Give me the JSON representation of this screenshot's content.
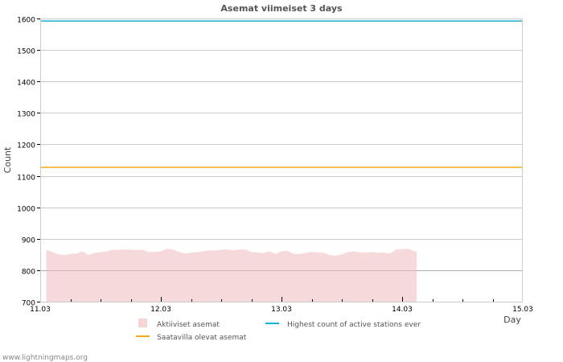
{
  "chart_data": {
    "type": "area",
    "title": "Asemat viimeiset 3 days",
    "xlabel": "Day",
    "ylabel": "Count",
    "ylim": [
      700,
      1600
    ],
    "xlim": [
      0,
      4
    ],
    "yticks": [
      700,
      800,
      900,
      1000,
      1100,
      1200,
      1300,
      1400,
      1500,
      1600
    ],
    "xtick_labels": [
      "11.03",
      "12.03",
      "13.03",
      "14.03",
      "15.03"
    ],
    "grid": true,
    "legend_placement": "bottom",
    "series": [
      {
        "name": "Aktiiviset asemat",
        "type": "area",
        "color": "#f5d5d6",
        "x": [
          0.05,
          0.1,
          0.15,
          0.2,
          0.25,
          0.3,
          0.35,
          0.4,
          0.45,
          0.5,
          0.55,
          0.6,
          0.65,
          0.7,
          0.75,
          0.8,
          0.85,
          0.9,
          0.95,
          1.0,
          1.05,
          1.1,
          1.15,
          1.2,
          1.25,
          1.3,
          1.35,
          1.4,
          1.45,
          1.5,
          1.55,
          1.6,
          1.65,
          1.7,
          1.75,
          1.8,
          1.85,
          1.9,
          1.95,
          2.0,
          2.05,
          2.1,
          2.15,
          2.2,
          2.25,
          2.3,
          2.35,
          2.4,
          2.45,
          2.5,
          2.55,
          2.6,
          2.65,
          2.7,
          2.75,
          2.8,
          2.85,
          2.9,
          2.95,
          3.0,
          3.05,
          3.1,
          3.12
        ],
        "values": [
          865,
          858,
          850,
          848,
          852,
          853,
          860,
          848,
          855,
          857,
          860,
          865,
          865,
          866,
          865,
          864,
          865,
          858,
          858,
          860,
          868,
          866,
          858,
          853,
          856,
          857,
          860,
          863,
          862,
          865,
          866,
          863,
          866,
          866,
          858,
          856,
          855,
          860,
          852,
          860,
          862,
          852,
          851,
          855,
          858,
          857,
          855,
          848,
          846,
          850,
          858,
          860,
          856,
          856,
          858,
          855,
          856,
          853,
          866,
          867,
          868,
          860,
          860
        ]
      },
      {
        "name": "Highest count of active stations ever",
        "type": "hline",
        "color": "#1ab0d0",
        "value": 1592
      },
      {
        "name": "Saatavilla olevat asemat",
        "type": "hline",
        "color": "#f5a81c",
        "value": 1127
      }
    ]
  },
  "footer": "www.lightningmaps.org"
}
